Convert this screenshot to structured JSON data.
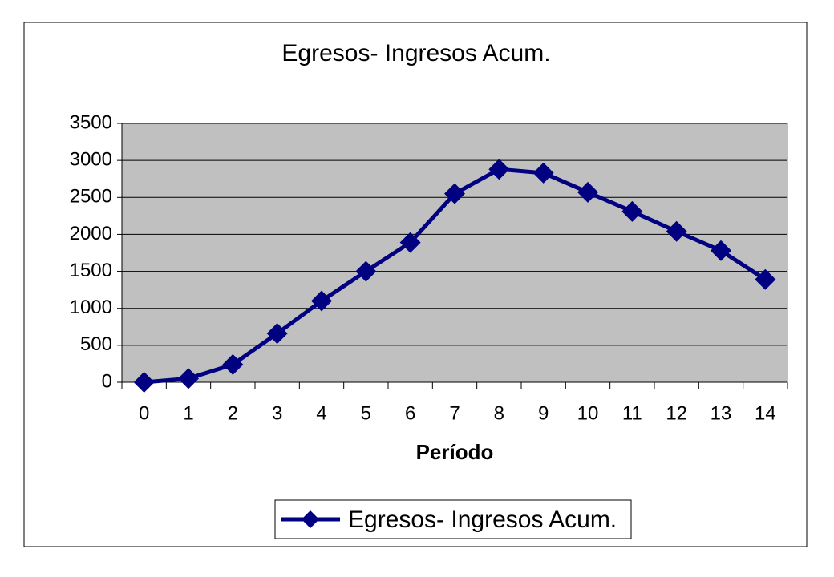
{
  "chart_data": {
    "type": "line",
    "title": "Egresos- Ingresos Acum.",
    "x_label": "Período",
    "categories": [
      "0",
      "1",
      "2",
      "3",
      "4",
      "5",
      "6",
      "7",
      "8",
      "9",
      "10",
      "11",
      "12",
      "13",
      "14"
    ],
    "series": [
      {
        "name": "Egresos- Ingresos Acum.",
        "color": "#000080",
        "values": [
          0,
          50,
          240,
          660,
          1100,
          1500,
          1890,
          2550,
          2880,
          2830,
          2570,
          2310,
          2040,
          1780,
          1390
        ]
      }
    ],
    "ylim": [
      0,
      3500
    ],
    "yticks": [
      0,
      500,
      1000,
      1500,
      2000,
      2500,
      3000,
      3500
    ],
    "grid": true,
    "plot_background": "#c0c0c0",
    "legend": "bottom"
  }
}
